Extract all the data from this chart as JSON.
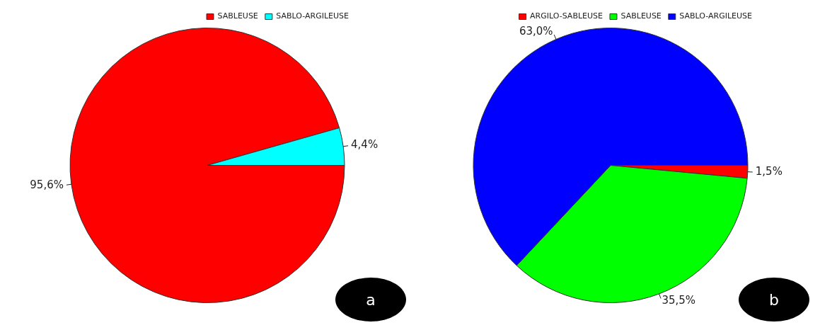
{
  "chart_data": [
    {
      "type": "pie",
      "categories": [
        "SABLEUSE",
        "SABLO-ARGILEUSE"
      ],
      "values": [
        95.6,
        4.4
      ],
      "colors": [
        "#ff0000",
        "#00ffff"
      ],
      "value_labels": [
        "95,6%",
        "4,4%"
      ],
      "legend": "top right",
      "annotations": [
        "a"
      ]
    },
    {
      "type": "pie",
      "categories": [
        "ARGILO-SABLEUSE",
        "SABLEUSE",
        "SABLO-ARGILEUSE"
      ],
      "values": [
        1.5,
        35.5,
        63.0
      ],
      "colors": [
        "#ff0000",
        "#00ff00",
        "#0000ff"
      ],
      "value_labels": [
        "1,5%",
        "35,5%",
        "63,0%"
      ],
      "legend": "top right",
      "annotations": [
        "b"
      ]
    }
  ]
}
